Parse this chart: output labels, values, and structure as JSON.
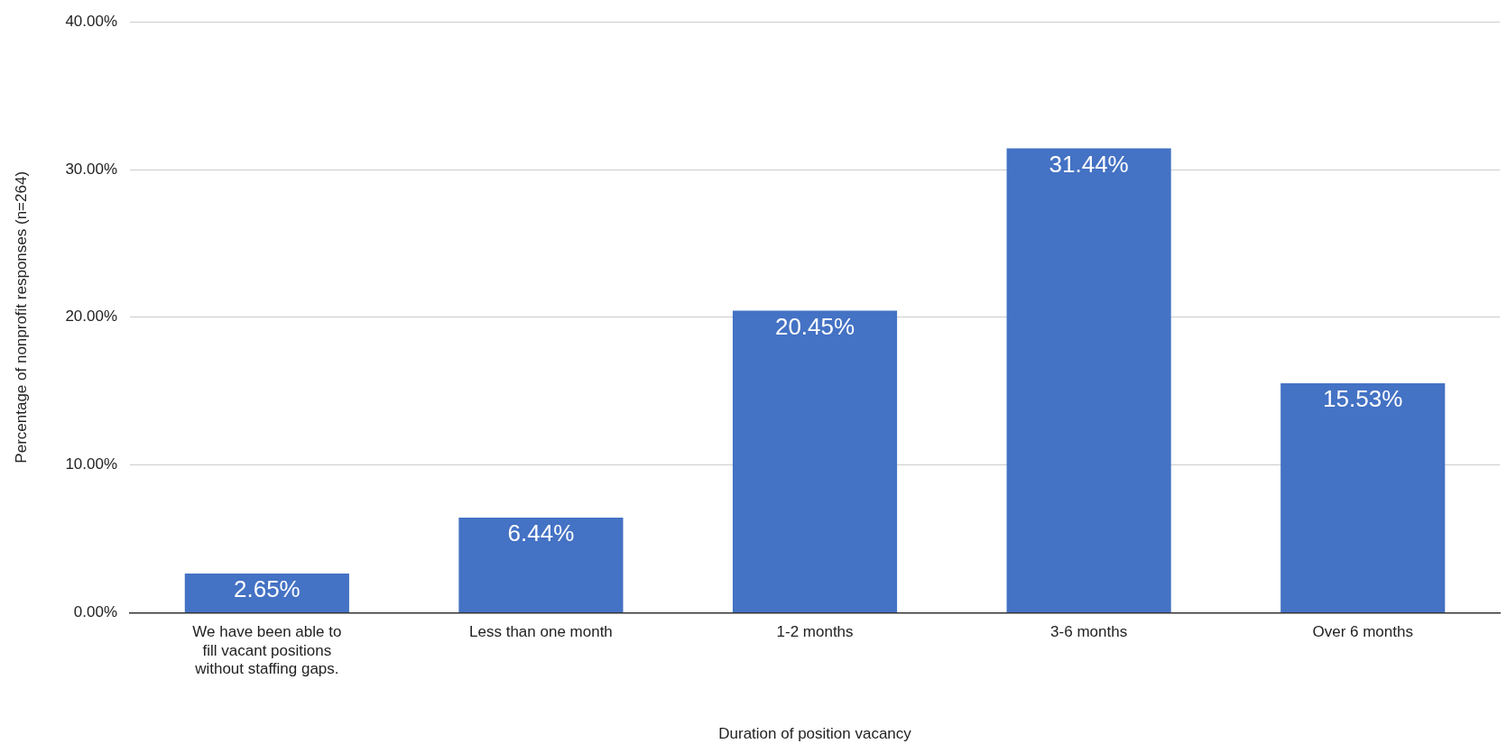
{
  "chart_data": {
    "type": "bar",
    "xlabel": "Duration of position vacancy",
    "ylabel": "Percentage of nonprofit responses (n=264)",
    "categories": [
      "We have been able to fill vacant positions without staffing gaps.",
      "Less than one month",
      "1-2 months",
      "3-6 months",
      "Over 6 months"
    ],
    "values": [
      2.65,
      6.44,
      20.45,
      31.44,
      15.53
    ],
    "value_labels": [
      "2.65%",
      "6.44%",
      "20.45%",
      "31.44%",
      "15.53%"
    ],
    "color": "#4472c4",
    "ylim": [
      0,
      40
    ],
    "yticks": [
      {
        "value": 0,
        "label": "0.00%"
      },
      {
        "value": 10,
        "label": "10.00%"
      },
      {
        "value": 20,
        "label": "20.00%"
      },
      {
        "value": 30,
        "label": "30.00%"
      },
      {
        "value": 40,
        "label": "40.00%"
      }
    ],
    "grid": "y",
    "legend": false
  }
}
